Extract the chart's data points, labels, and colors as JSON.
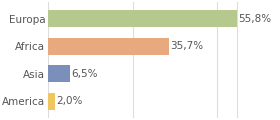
{
  "categories": [
    "America",
    "Asia",
    "Africa",
    "Europa"
  ],
  "values": [
    2.0,
    6.5,
    35.7,
    55.8
  ],
  "bar_colors": [
    "#f0c75e",
    "#7a90bb",
    "#e8a97e",
    "#b5c98e"
  ],
  "labels": [
    "2,0%",
    "6,5%",
    "35,7%",
    "55,8%"
  ],
  "xlim": [
    0,
    68
  ],
  "background_color": "#ffffff",
  "bar_height": 0.62,
  "label_fontsize": 7.5,
  "ytick_fontsize": 7.5,
  "grid_color": "#dddddd",
  "text_color": "#555555"
}
